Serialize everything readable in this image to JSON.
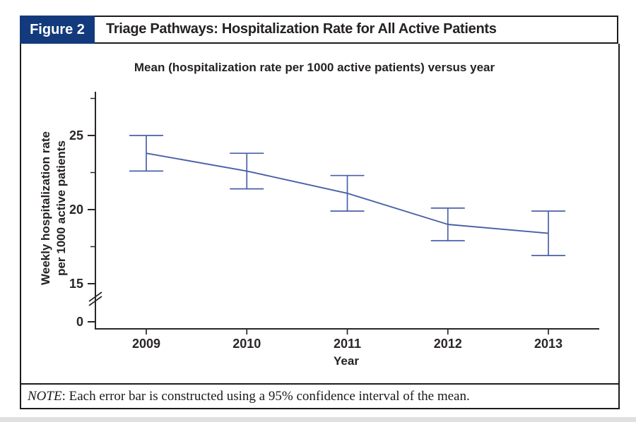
{
  "page": {
    "badge_label": "Figure 2",
    "title": "Triage Pathways: Hospitalization Rate for All Active Patients",
    "note": {
      "label": "NOTE",
      "text": ": Each error bar is constructed using a 95% confidence interval of the mean."
    }
  },
  "colors": {
    "badge_bg": "#133a7c",
    "line_blue": "#4a60a8",
    "axis": "#2a2627",
    "border": "#1c1c1c",
    "bottom_strip": "#e0e0e0"
  },
  "chart_data": {
    "type": "line",
    "title": "Mean (hospitalization rate per 1000 active patients) versus year",
    "xlabel": "Year",
    "ylabel": "Weekly hospitalization rate per 1000 active patients",
    "ylabel_lines": [
      "Weekly hospitalization rate",
      "per 1000 active patients"
    ],
    "categories": [
      "2009",
      "2010",
      "2011",
      "2012",
      "2013"
    ],
    "series": [
      {
        "name": "Mean weekly hospitalization rate",
        "values": [
          23.8,
          22.6,
          21.1,
          19.0,
          18.4
        ],
        "ci_upper": [
          25.0,
          23.8,
          22.3,
          20.1,
          19.9
        ],
        "ci_lower": [
          22.6,
          21.4,
          19.9,
          17.9,
          16.9
        ]
      }
    ],
    "error_bars": "95% confidence interval of the mean",
    "y_ticks_labeled": [
      25,
      20,
      15
    ],
    "y_ticks_minor": [
      27.5,
      22.5,
      17.5
    ],
    "y_zero_label": "0",
    "y_axis_break": true,
    "ylim": [
      0,
      28.5
    ],
    "grid": false,
    "legend": false
  }
}
